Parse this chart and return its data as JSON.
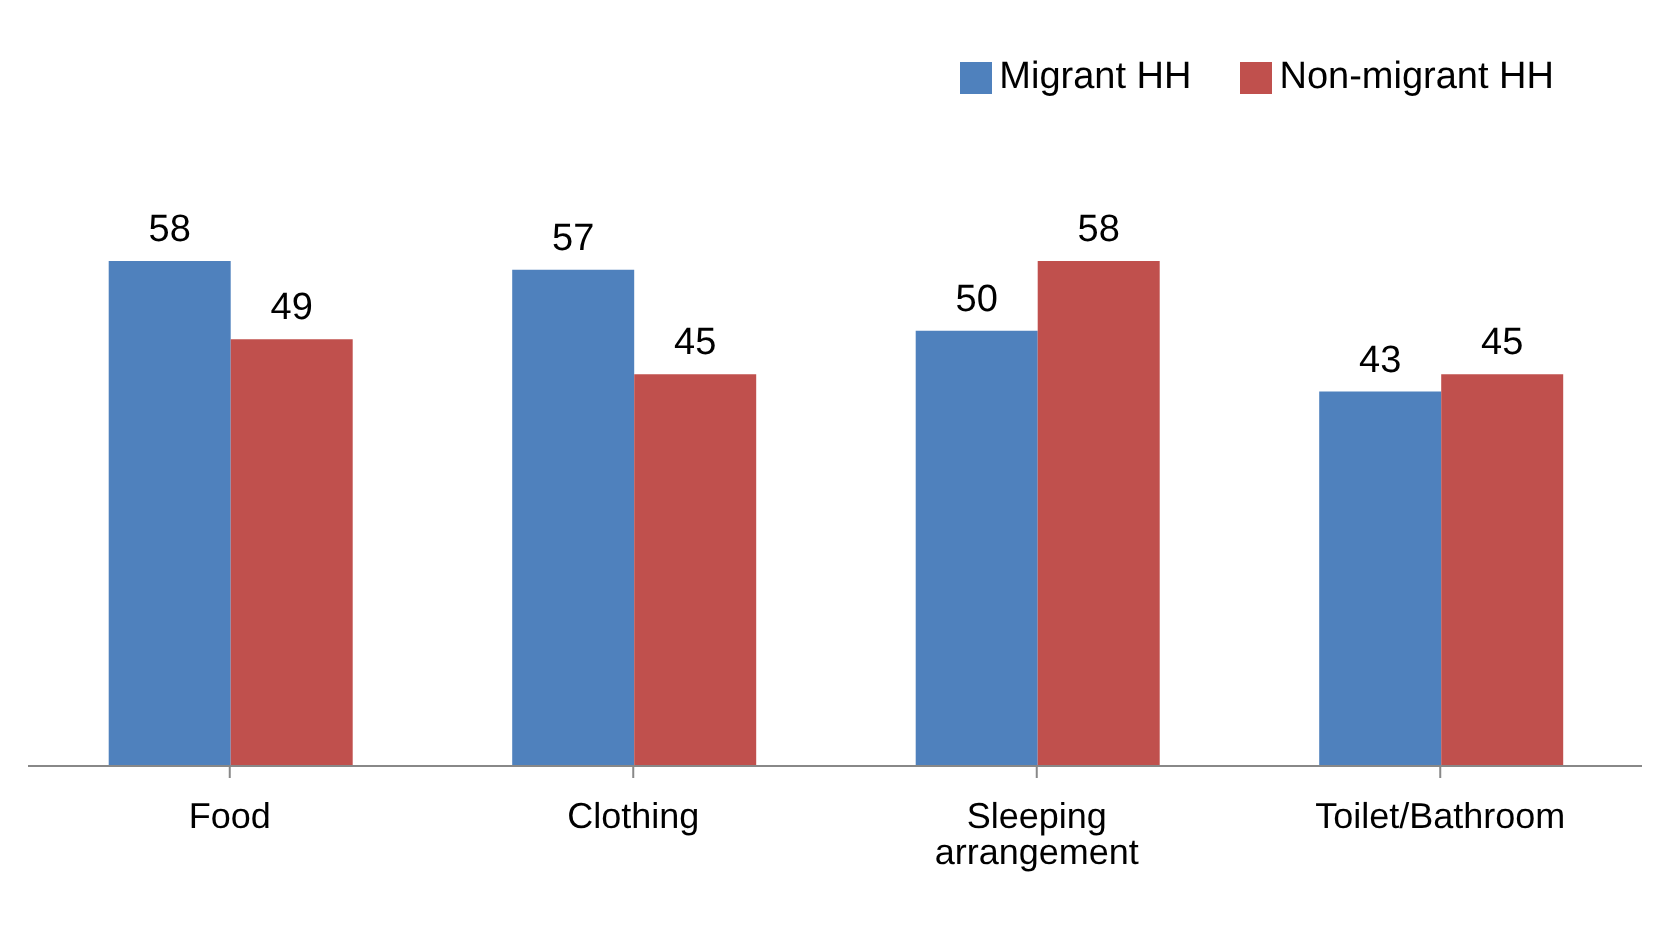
{
  "chart_data": {
    "type": "bar",
    "categories": [
      "Food",
      "Clothing",
      "Sleeping arrangement",
      "Toilet/Bathroom"
    ],
    "series": [
      {
        "name": "Migrant HH",
        "color": "#4f81bd",
        "values": [
          58,
          57,
          50,
          43
        ]
      },
      {
        "name": "Non-migrant HH",
        "color": "#c0504d",
        "values": [
          49,
          45,
          58,
          45
        ]
      }
    ],
    "data_labels": true,
    "legend": "top right",
    "grid": false
  }
}
